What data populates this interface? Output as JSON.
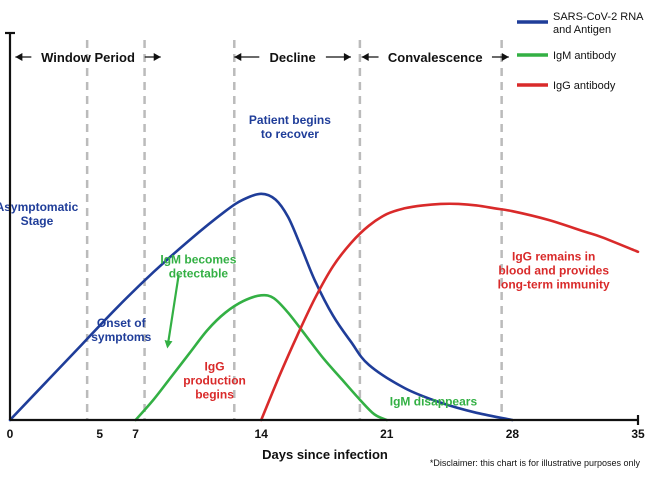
{
  "chart_data": {
    "type": "line",
    "title": "",
    "xlabel": "Days since infection",
    "ylabel": "",
    "xlim": [
      0,
      35
    ],
    "ylim": [
      0,
      1
    ],
    "x_ticks": [
      0,
      5,
      7,
      14,
      21,
      28,
      35
    ],
    "x_tick_labels": [
      "0",
      "5",
      "7",
      "14",
      "21",
      "28",
      "35"
    ],
    "grid": false,
    "legend_position": "top-right",
    "colors": {
      "sars": "#1f3d99",
      "igm": "#33b044",
      "igg": "#d92a2a",
      "dashed": "#bbbbbb",
      "axis": "#111111"
    },
    "series": [
      {
        "key": "sars",
        "name": "SARS-CoV-2 RNA and Antigen",
        "legend_lines": [
          "SARS-CoV-2 RNA",
          "and Antigen"
        ],
        "points": [
          [
            0,
            0.0
          ],
          [
            2,
            0.13
          ],
          [
            4,
            0.26
          ],
          [
            6,
            0.39
          ],
          [
            8,
            0.51
          ],
          [
            10,
            0.62
          ],
          [
            12,
            0.72
          ],
          [
            13,
            0.76
          ],
          [
            14,
            0.78
          ],
          [
            14.8,
            0.76
          ],
          [
            15.5,
            0.7
          ],
          [
            16.2,
            0.6
          ],
          [
            17,
            0.48
          ],
          [
            18,
            0.36
          ],
          [
            19,
            0.27
          ],
          [
            20,
            0.19
          ],
          [
            22,
            0.11
          ],
          [
            24,
            0.06
          ],
          [
            26,
            0.025
          ],
          [
            28,
            0.0
          ]
        ]
      },
      {
        "key": "igm",
        "name": "IgM antibody",
        "legend_lines": [
          "IgM antibody"
        ],
        "points": [
          [
            7,
            0.0
          ],
          [
            8,
            0.07
          ],
          [
            9,
            0.15
          ],
          [
            10,
            0.23
          ],
          [
            11,
            0.31
          ],
          [
            12,
            0.37
          ],
          [
            13,
            0.41
          ],
          [
            14,
            0.43
          ],
          [
            14.7,
            0.42
          ],
          [
            15.5,
            0.37
          ],
          [
            16.5,
            0.29
          ],
          [
            17.5,
            0.21
          ],
          [
            18.5,
            0.14
          ],
          [
            19.5,
            0.07
          ],
          [
            20.3,
            0.02
          ],
          [
            21,
            0.0
          ]
        ]
      },
      {
        "key": "igg",
        "name": "IgG antibody",
        "legend_lines": [
          "IgG antibody"
        ],
        "points": [
          [
            14,
            0.0
          ],
          [
            15,
            0.15
          ],
          [
            16,
            0.29
          ],
          [
            17,
            0.42
          ],
          [
            18,
            0.53
          ],
          [
            19,
            0.61
          ],
          [
            20,
            0.67
          ],
          [
            21,
            0.71
          ],
          [
            22,
            0.73
          ],
          [
            23,
            0.74
          ],
          [
            24,
            0.745
          ],
          [
            25,
            0.745
          ],
          [
            26,
            0.74
          ],
          [
            27,
            0.73
          ],
          [
            28,
            0.72
          ],
          [
            30,
            0.69
          ],
          [
            32,
            0.65
          ],
          [
            33,
            0.63
          ],
          [
            35,
            0.58
          ]
        ]
      }
    ],
    "dashed_lines_x": [
      4.3,
      7.5,
      12.5,
      19.5,
      27.4
    ],
    "phases": [
      {
        "label": "Window Period",
        "from": 0.3,
        "to": 8.4
      },
      {
        "label": "Decline",
        "from": 12.5,
        "to": 19.0
      },
      {
        "label": "Convalescence",
        "from": 19.6,
        "to": 27.8
      }
    ],
    "annotations": [
      {
        "key": "asymptomatic",
        "color_key": "sars",
        "lines": [
          "Asymptomatic",
          "Stage"
        ],
        "x": 1.5,
        "y": 0.72
      },
      {
        "key": "onset",
        "color_key": "sars",
        "lines": [
          "Onset of",
          "symptoms"
        ],
        "x": 6.2,
        "y": 0.32
      },
      {
        "key": "patient-recover",
        "color_key": "sars",
        "lines": [
          "Patient begins",
          "to recover"
        ],
        "x": 15.6,
        "y": 1.02
      },
      {
        "key": "igm-detectable",
        "color_key": "igm",
        "lines": [
          "IgM becomes",
          "detectable"
        ],
        "x": 10.5,
        "y": 0.54
      },
      {
        "key": "igg-production",
        "color_key": "igg",
        "lines": [
          "IgG",
          "production",
          "begins"
        ],
        "x": 11.4,
        "y": 0.17
      },
      {
        "key": "igm-disappears",
        "color_key": "igm",
        "lines": [
          "IgM disappears"
        ],
        "x": 23.6,
        "y": 0.05
      },
      {
        "key": "igg-remains",
        "color_key": "igg",
        "lines": [
          "IgG remains in",
          "blood and provides",
          "long-term immunity"
        ],
        "x": 30.3,
        "y": 0.55
      }
    ],
    "igm_arrow": {
      "from": [
        9.4,
        0.5
      ],
      "to": [
        8.8,
        0.26
      ]
    },
    "disclaimer": "*Disclaimer: this chart is for illustrative purposes only"
  }
}
